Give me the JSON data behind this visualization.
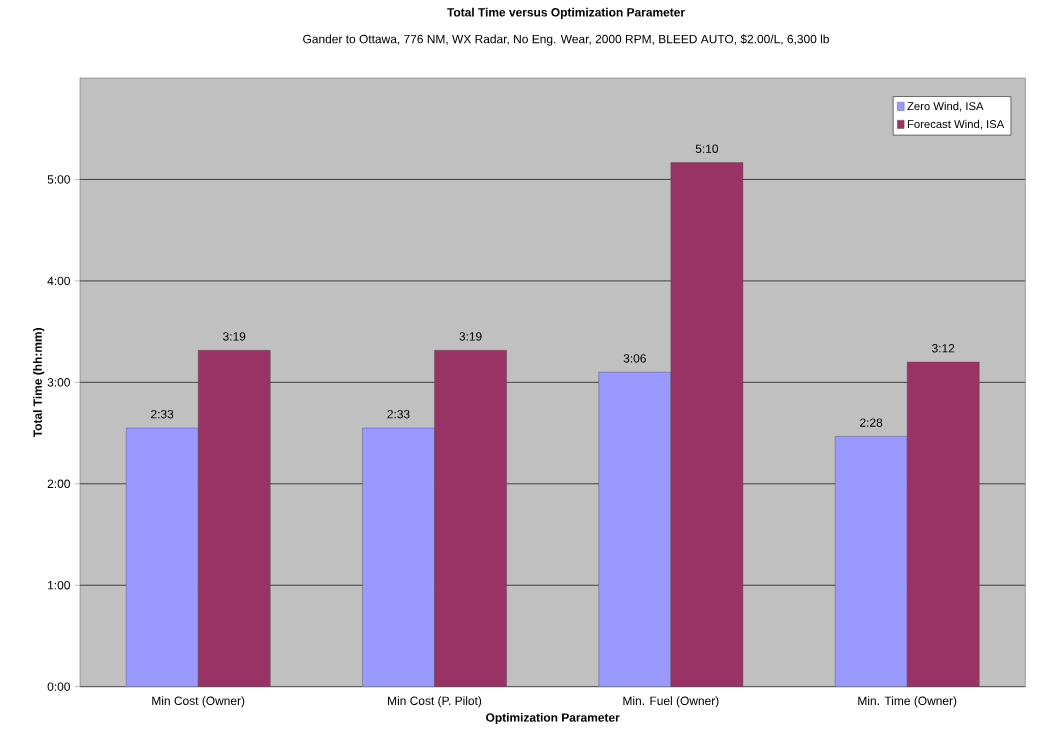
{
  "chart_data": {
    "type": "bar",
    "title": "Total Time versus Optimization Parameter",
    "subtitle": "Gander to Ottawa, 776 NM, WX Radar, No Eng. Wear, 2000 RPM, BLEED AUTO, $2.00/L, 6,300 lb",
    "xlabel": "Optimization Parameter",
    "ylabel": "Total Time (hh:mm)",
    "categories": [
      "Min Cost (Owner)",
      "Min Cost (P. Pilot)",
      "Min. Fuel (Owner)",
      "Min. Time (Owner)"
    ],
    "series": [
      {
        "name": "Zero Wind, ISA",
        "color": "#9999ff",
        "values": [
          2.55,
          2.55,
          3.1,
          2.4667
        ],
        "value_labels": [
          "2:33",
          "2:33",
          "3:06",
          "2:28"
        ]
      },
      {
        "name": "Forecast Wind, ISA",
        "color": "#993366",
        "values": [
          3.3167,
          3.3167,
          5.1667,
          3.2
        ],
        "value_labels": [
          "3:19",
          "3:19",
          "5:10",
          "3:12"
        ]
      }
    ],
    "ylim": [
      0,
      6
    ],
    "yticks": [
      {
        "value": 0,
        "label": "0:00"
      },
      {
        "value": 1,
        "label": "1:00"
      },
      {
        "value": 2,
        "label": "2:00"
      },
      {
        "value": 3,
        "label": "3:00"
      },
      {
        "value": 4,
        "label": "4:00"
      },
      {
        "value": 5,
        "label": "5:00"
      }
    ],
    "grid": "y",
    "legend": "top right"
  }
}
